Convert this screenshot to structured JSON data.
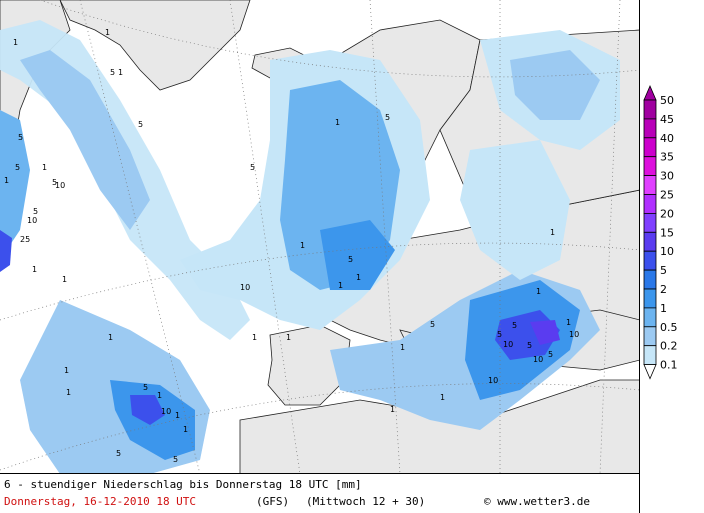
{
  "map": {
    "title": "6 - stuendiger Niederschlag bis Donnerstag 18 UTC [mm]",
    "date": "Donnerstag, 16-12-2010  18 UTC",
    "model": "(GFS)",
    "run": "(Mittwoch 12 + 30)",
    "copyright": "© www.wetter3.de"
  },
  "legend": {
    "levels": [
      "50",
      "45",
      "40",
      "35",
      "30",
      "25",
      "20",
      "15",
      "10",
      "5",
      "2",
      "1",
      "0.5",
      "0.2",
      "0.1"
    ],
    "colors": [
      "#a000a0",
      "#b800b8",
      "#cc00cc",
      "#dd10dd",
      "#e040ff",
      "#b030ff",
      "#8040ff",
      "#5a3cf0",
      "#3c50ec",
      "#2a78e8",
      "#3c96ec",
      "#6cb4f0",
      "#9ccaf2",
      "#c6e6f8",
      "#ffffff"
    ]
  },
  "contour_labels": [
    "1",
    "1",
    "5",
    "1",
    "5",
    "5",
    "1",
    "5",
    "1",
    "10",
    "10",
    "5",
    "25",
    "5",
    "1",
    "1",
    "1",
    "1",
    "1",
    "5",
    "5",
    "1",
    "1",
    "5",
    "1",
    "1",
    "1",
    "5",
    "5",
    "5",
    "1",
    "1",
    "10",
    "5",
    "5",
    "10",
    "10",
    "10",
    "5",
    "1",
    "1",
    "1",
    "10",
    "5",
    "5",
    "10",
    "1",
    "1",
    "1",
    "1",
    "1"
  ]
}
